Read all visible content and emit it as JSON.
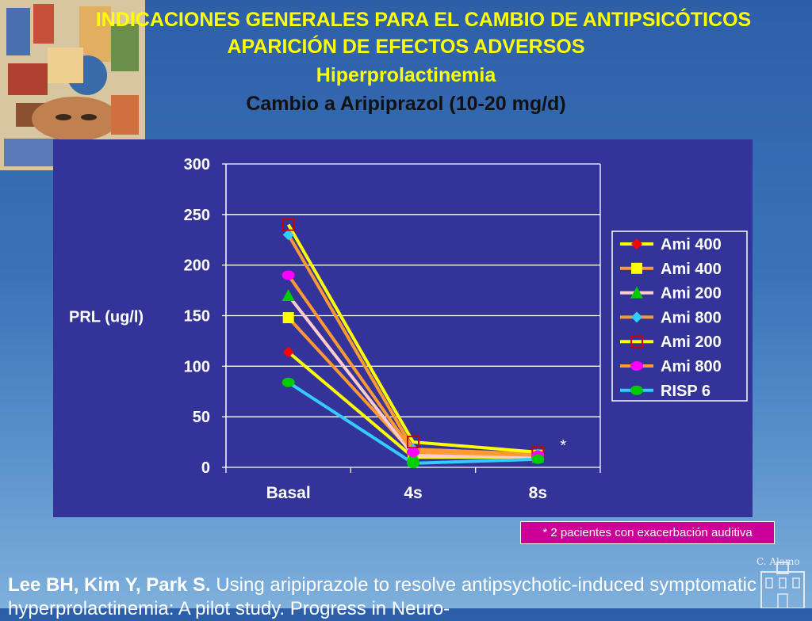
{
  "header": {
    "line1": "INDICACIONES GENERALES PARA EL CAMBIO DE ANTIPSICÓTICOS",
    "line2": "APARICIÓN DE EFECTOS ADVERSOS",
    "line3": "Hiperprolactinemia",
    "line4": "Cambio a Aripiprazol (10-20 mg/d)"
  },
  "chart_data": {
    "type": "line",
    "title": "",
    "xlabel": "",
    "ylabel": "PRL (ug/l)",
    "categories": [
      "Basal",
      "4s",
      "8s"
    ],
    "ylim": [
      0,
      300
    ],
    "yticks": [
      "0",
      "50",
      "100",
      "150",
      "200",
      "250",
      "300"
    ],
    "legend_position": "right",
    "annotation": "*",
    "series": [
      {
        "name": "Ami 400",
        "values": [
          114,
          10,
          10
        ],
        "line_color": "#ffff00",
        "marker": "diamond",
        "marker_color": "#ff0000"
      },
      {
        "name": "Ami 400",
        "values": [
          148,
          14,
          12
        ],
        "line_color": "#ff9933",
        "marker": "square",
        "marker_color": "#ffff00"
      },
      {
        "name": "Ami 200",
        "values": [
          170,
          12,
          10
        ],
        "line_color": "#ffcccc",
        "marker": "triangle",
        "marker_color": "#00cc00"
      },
      {
        "name": "Ami 800",
        "values": [
          230,
          18,
          13
        ],
        "line_color": "#ff9933",
        "marker": "diamond",
        "marker_color": "#33ccff"
      },
      {
        "name": "Ami 200",
        "values": [
          240,
          25,
          15
        ],
        "line_color": "#ffff00",
        "marker": "open-square",
        "marker_color": "#cc0000"
      },
      {
        "name": "Ami 800",
        "values": [
          190,
          15,
          12
        ],
        "line_color": "#ff9933",
        "marker": "circle",
        "marker_color": "#ff00ff"
      },
      {
        "name": "RISP 6",
        "values": [
          84,
          4,
          8
        ],
        "line_color": "#33ccff",
        "marker": "circle",
        "marker_color": "#00cc00"
      }
    ]
  },
  "footnote": "* 2 pacientes con exacerbación auditiva",
  "watermark": "C. Alamo",
  "citation": {
    "authors": "Lee BH, Kim Y, Park S.",
    "text": " Using aripiprazole to resolve antipsychotic-induced symptomatic hyperprolactinemia: A pilot study. Progress in Neuro-"
  },
  "colors": {
    "title_yellow": "#ffff00",
    "title_black": "#111111",
    "chart_bg": "#333399",
    "note_bg": "#cc0099"
  }
}
